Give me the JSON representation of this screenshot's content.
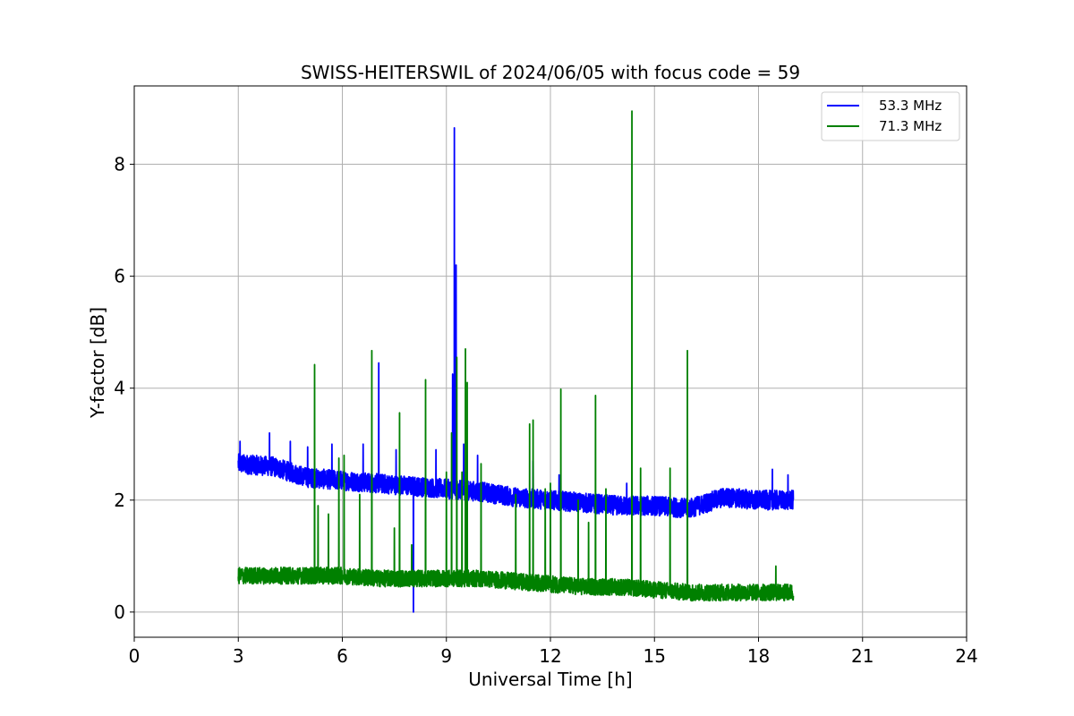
{
  "chart_data": {
    "type": "line",
    "title": "SWISS-HEITERSWIL of 2024/06/05 with focus code = 59",
    "xlabel": "Universal Time [h]",
    "ylabel": "Y-factor [dB]",
    "xlim": [
      0,
      24
    ],
    "ylim": [
      -0.45,
      9.4
    ],
    "xticks": [
      0,
      3,
      6,
      9,
      12,
      15,
      18,
      21,
      24
    ],
    "yticks": [
      0,
      2,
      4,
      6,
      8
    ],
    "xtick_labels": [
      "0",
      "3",
      "6",
      "9",
      "12",
      "15",
      "18",
      "21",
      "24"
    ],
    "ytick_labels": [
      "0",
      "2",
      "4",
      "6",
      "8"
    ],
    "grid": true,
    "legend_position": "top-right",
    "series": [
      {
        "name": "53.3 MHz",
        "color": "#0000ff",
        "x_range": [
          3.0,
          19.0
        ],
        "baseline": [
          [
            3.0,
            2.65
          ],
          [
            4.0,
            2.6
          ],
          [
            5.0,
            2.4
          ],
          [
            6.0,
            2.35
          ],
          [
            7.0,
            2.3
          ],
          [
            8.0,
            2.25
          ],
          [
            9.0,
            2.2
          ],
          [
            10.0,
            2.15
          ],
          [
            11.0,
            2.05
          ],
          [
            12.0,
            2.0
          ],
          [
            13.0,
            1.95
          ],
          [
            14.0,
            1.9
          ],
          [
            15.0,
            1.9
          ],
          [
            16.0,
            1.85
          ],
          [
            17.0,
            2.05
          ],
          [
            18.0,
            2.0
          ],
          [
            19.0,
            2.0
          ]
        ],
        "noise_amplitude": 0.35,
        "spikes": [
          [
            3.05,
            3.05
          ],
          [
            3.9,
            3.2
          ],
          [
            4.5,
            3.05
          ],
          [
            5.0,
            2.95
          ],
          [
            5.7,
            3.0
          ],
          [
            6.6,
            3.0
          ],
          [
            7.05,
            4.45
          ],
          [
            7.55,
            2.9
          ],
          [
            8.05,
            0.0
          ],
          [
            8.7,
            2.9
          ],
          [
            9.18,
            4.25
          ],
          [
            9.23,
            8.65
          ],
          [
            9.28,
            6.2
          ],
          [
            9.5,
            3.0
          ],
          [
            9.9,
            2.8
          ],
          [
            11.5,
            2.7
          ],
          [
            12.25,
            2.45
          ],
          [
            14.2,
            2.3
          ],
          [
            18.4,
            2.55
          ],
          [
            18.85,
            2.45
          ]
        ]
      },
      {
        "name": "71.3 MHz",
        "color": "#008000",
        "x_range": [
          3.0,
          19.0
        ],
        "baseline": [
          [
            3.0,
            0.65
          ],
          [
            4.0,
            0.65
          ],
          [
            5.0,
            0.65
          ],
          [
            6.0,
            0.65
          ],
          [
            7.0,
            0.6
          ],
          [
            8.0,
            0.6
          ],
          [
            9.0,
            0.6
          ],
          [
            10.0,
            0.6
          ],
          [
            11.0,
            0.55
          ],
          [
            12.0,
            0.5
          ],
          [
            13.0,
            0.45
          ],
          [
            14.0,
            0.45
          ],
          [
            15.0,
            0.4
          ],
          [
            16.0,
            0.35
          ],
          [
            17.0,
            0.35
          ],
          [
            18.0,
            0.35
          ],
          [
            19.0,
            0.35
          ]
        ],
        "noise_amplitude": 0.3,
        "spikes": [
          [
            5.2,
            4.42
          ],
          [
            5.3,
            1.9
          ],
          [
            5.6,
            1.75
          ],
          [
            5.9,
            2.75
          ],
          [
            6.05,
            2.8
          ],
          [
            6.5,
            2.1
          ],
          [
            6.85,
            4.67
          ],
          [
            7.5,
            1.5
          ],
          [
            7.65,
            3.56
          ],
          [
            8.0,
            1.2
          ],
          [
            8.4,
            4.15
          ],
          [
            9.0,
            2.5
          ],
          [
            9.15,
            3.2
          ],
          [
            9.3,
            4.55
          ],
          [
            9.45,
            2.5
          ],
          [
            9.55,
            4.7
          ],
          [
            9.6,
            4.1
          ],
          [
            10.0,
            2.65
          ],
          [
            11.0,
            2.1
          ],
          [
            11.4,
            3.36
          ],
          [
            11.5,
            3.43
          ],
          [
            11.85,
            2.2
          ],
          [
            12.0,
            2.3
          ],
          [
            12.3,
            3.98
          ],
          [
            12.8,
            2.0
          ],
          [
            13.1,
            1.6
          ],
          [
            13.3,
            3.87
          ],
          [
            13.6,
            2.2
          ],
          [
            14.35,
            8.95
          ],
          [
            14.6,
            2.57
          ],
          [
            15.45,
            2.57
          ],
          [
            15.95,
            4.67
          ],
          [
            18.5,
            0.82
          ]
        ]
      }
    ]
  }
}
